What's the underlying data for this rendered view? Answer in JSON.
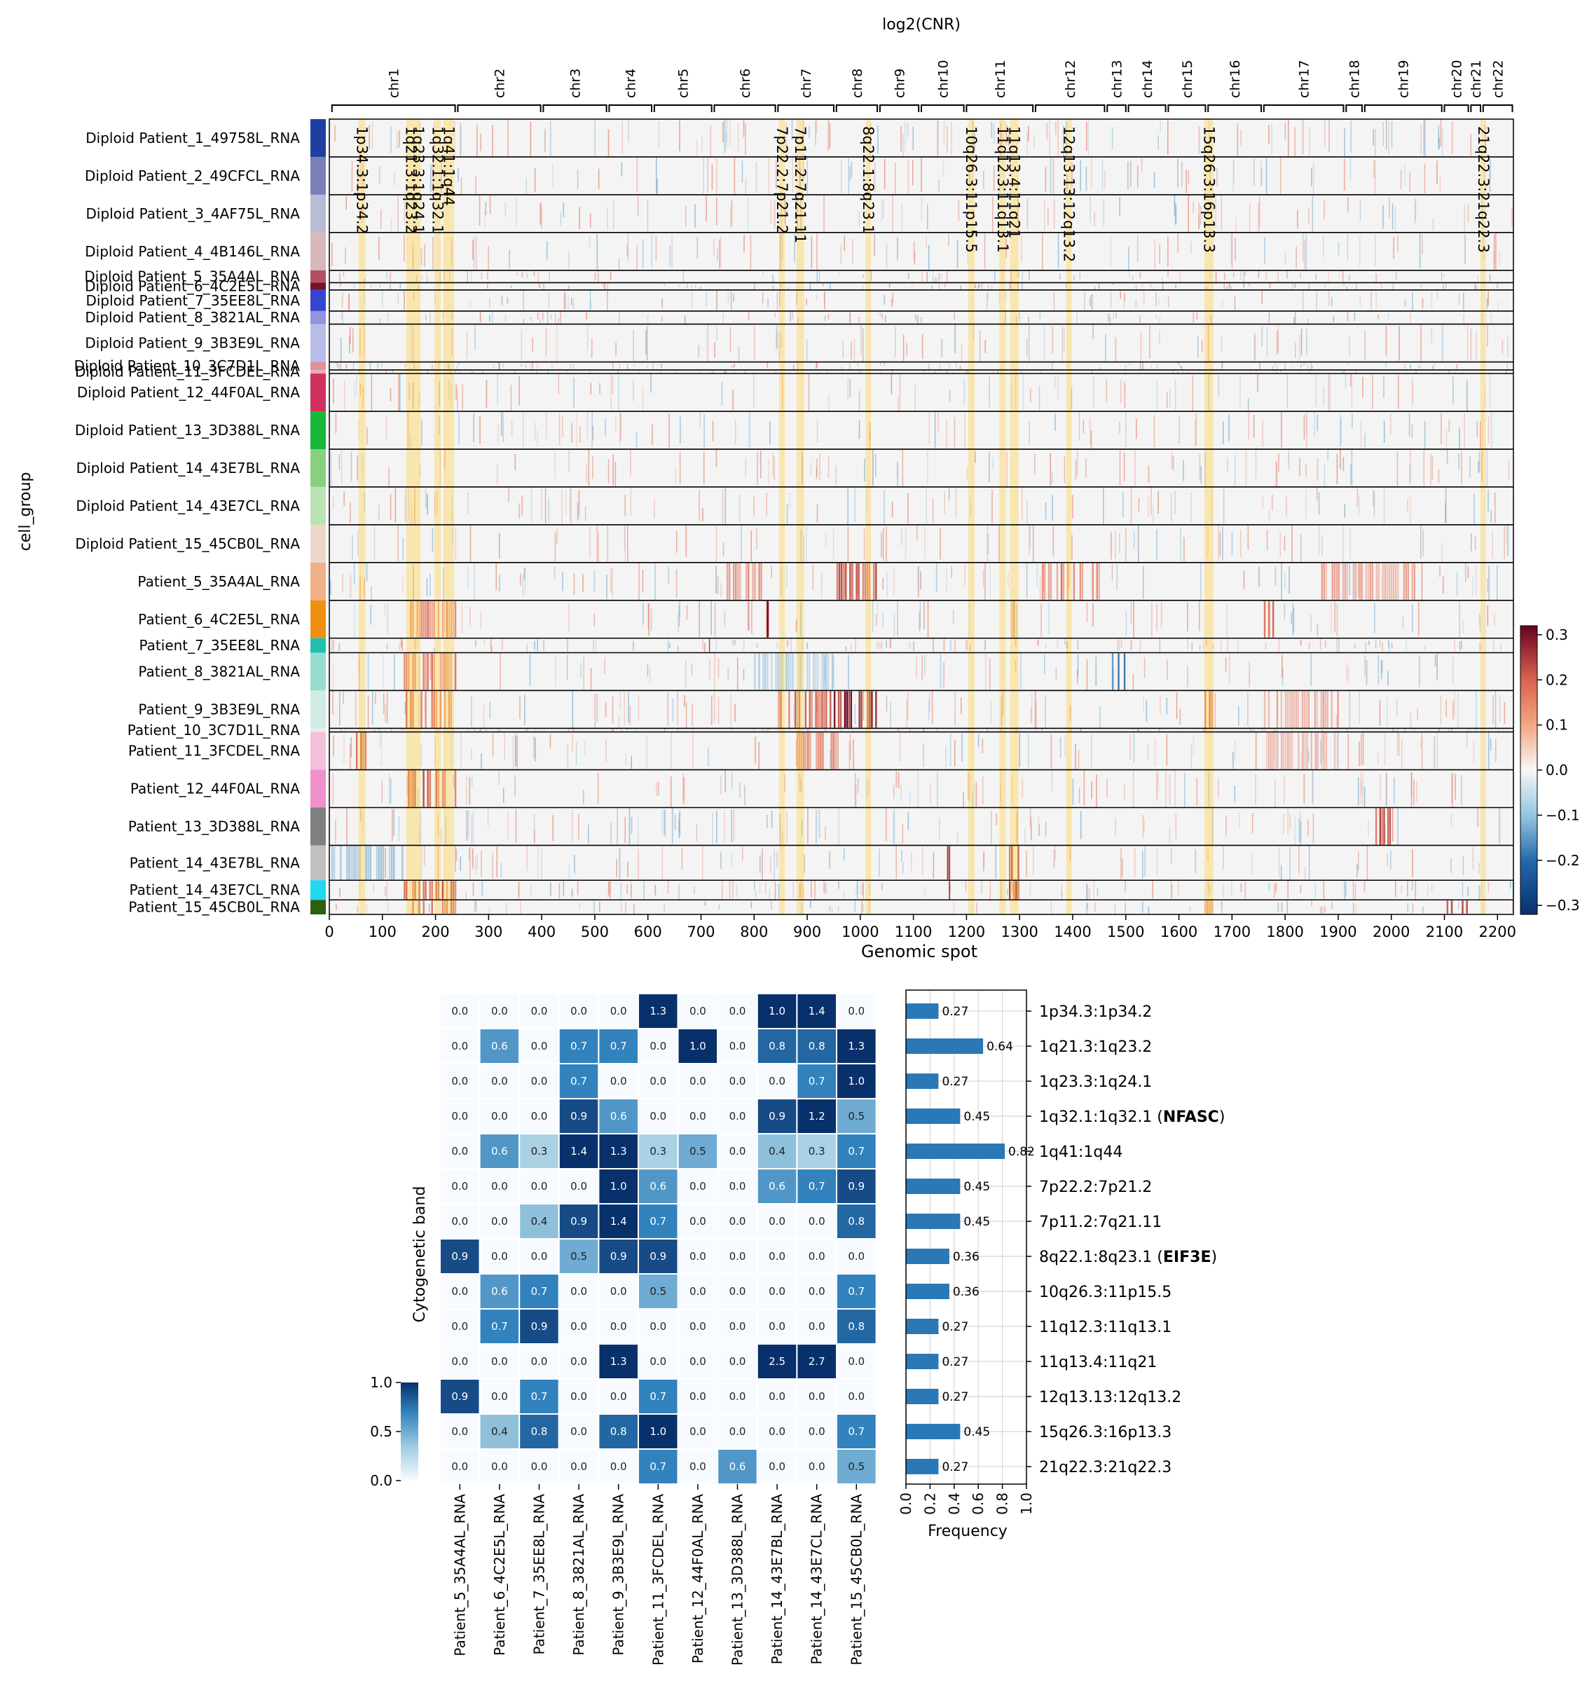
{
  "chart_data": [
    {
      "type": "heatmap",
      "title": "log2(CNR)",
      "xlabel": "Genomic spot",
      "ylabel": "cell_group",
      "x_range": [
        0,
        2230
      ],
      "x_ticks": [
        0,
        100,
        200,
        300,
        400,
        500,
        600,
        700,
        800,
        900,
        1000,
        1100,
        1200,
        1300,
        1400,
        1500,
        1600,
        1700,
        1800,
        1900,
        2000,
        2100,
        2200
      ],
      "chromosomes": [
        {
          "name": "chr1",
          "start": 5,
          "end": 237
        },
        {
          "name": "chr2",
          "start": 242,
          "end": 398
        },
        {
          "name": "chr3",
          "start": 403,
          "end": 522
        },
        {
          "name": "chr4",
          "start": 527,
          "end": 607
        },
        {
          "name": "chr5",
          "start": 612,
          "end": 720
        },
        {
          "name": "chr6",
          "start": 725,
          "end": 840
        },
        {
          "name": "chr7",
          "start": 845,
          "end": 950
        },
        {
          "name": "chr8",
          "start": 955,
          "end": 1032
        },
        {
          "name": "chr9",
          "start": 1037,
          "end": 1110
        },
        {
          "name": "chr10",
          "start": 1115,
          "end": 1195
        },
        {
          "name": "chr11",
          "start": 1200,
          "end": 1325
        },
        {
          "name": "chr12",
          "start": 1330,
          "end": 1460
        },
        {
          "name": "chr13",
          "start": 1465,
          "end": 1500
        },
        {
          "name": "chr14",
          "start": 1505,
          "end": 1575
        },
        {
          "name": "chr15",
          "start": 1580,
          "end": 1650
        },
        {
          "name": "chr16",
          "start": 1655,
          "end": 1755
        },
        {
          "name": "chr17",
          "start": 1760,
          "end": 1910
        },
        {
          "name": "chr18",
          "start": 1915,
          "end": 1945
        },
        {
          "name": "chr19",
          "start": 1950,
          "end": 2095
        },
        {
          "name": "chr20",
          "start": 2100,
          "end": 2145
        },
        {
          "name": "chr21",
          "start": 2150,
          "end": 2168
        },
        {
          "name": "chr22",
          "start": 2173,
          "end": 2228
        }
      ],
      "highlighted_regions": [
        {
          "label": "1p34.3:1p34.2",
          "start": 55,
          "end": 68
        },
        {
          "label": "1q21.3:1q23.2",
          "start": 145,
          "end": 163
        },
        {
          "label": "1q23.3:1q24.1",
          "start": 163,
          "end": 172
        },
        {
          "label": "1q32.1:1q32.1",
          "start": 198,
          "end": 210
        },
        {
          "label": "1q41:1q44",
          "start": 215,
          "end": 235
        },
        {
          "label": "7p22.2:7p21.2",
          "start": 847,
          "end": 858
        },
        {
          "label": "7p11.2:7q21.11",
          "start": 880,
          "end": 894
        },
        {
          "label": "8q22.1:8q23.1",
          "start": 1010,
          "end": 1020
        },
        {
          "label": "10q26.3:11p15.5",
          "start": 1203,
          "end": 1215
        },
        {
          "label": "11q12.3:11q13.1",
          "start": 1262,
          "end": 1274
        },
        {
          "label": "11q13.4:11q21",
          "start": 1282,
          "end": 1298
        },
        {
          "label": "12q13.13:12q13.2",
          "start": 1388,
          "end": 1398
        },
        {
          "label": "15q26.3:16p13.3",
          "start": 1648,
          "end": 1665
        },
        {
          "label": "21q22.3:21q22.3",
          "start": 2168,
          "end": 2178
        }
      ],
      "groups": [
        {
          "name": "Diploid Patient_1_49758L_RNA",
          "color": "#1f3fa0",
          "rows": 52
        },
        {
          "name": "Diploid Patient_2_49CFCL_RNA",
          "color": "#7b7fb8",
          "rows": 52
        },
        {
          "name": "Diploid Patient_3_4AF75L_RNA",
          "color": "#b9bcd4",
          "rows": 52
        },
        {
          "name": "Diploid Patient_4_4B146L_RNA",
          "color": "#d8b8bc",
          "rows": 52
        },
        {
          "name": "Diploid Patient_5_35A4AL_RNA",
          "color": "#b25060",
          "rows": 17
        },
        {
          "name": "Diploid Patient_6_4C2E5L_RNA",
          "color": "#7a0f2a",
          "rows": 10
        },
        {
          "name": "Diploid Patient_7_35EE8L_RNA",
          "color": "#3545d0",
          "rows": 29
        },
        {
          "name": "Diploid Patient_8_3821AL_RNA",
          "color": "#8f96e0",
          "rows": 18
        },
        {
          "name": "Diploid Patient_9_3B3E9L_RNA",
          "color": "#b8bde8",
          "rows": 52
        },
        {
          "name": "Diploid Patient_10_3C7D1L_RNA",
          "color": "#e0909c",
          "rows": 11
        },
        {
          "name": "Diploid Patient_11_3FCDEL_RNA",
          "color": "#e8b0b8",
          "rows": 5
        },
        {
          "name": "Diploid Patient_12_44F0AL_RNA",
          "color": "#d03060",
          "rows": 52
        },
        {
          "name": "Diploid Patient_13_3D388L_RNA",
          "color": "#17b83a",
          "rows": 52
        },
        {
          "name": "Diploid Patient_14_43E7BL_RNA",
          "color": "#88d080",
          "rows": 52
        },
        {
          "name": "Diploid Patient_14_43E7CL_RNA",
          "color": "#bce2b4",
          "rows": 52
        },
        {
          "name": "Diploid Patient_15_45CB0L_RNA",
          "color": "#edd8cc",
          "rows": 52
        },
        {
          "name": "Patient_5_35A4AL_RNA",
          "color": "#f0b088",
          "rows": 52
        },
        {
          "name": "Patient_6_4C2E5L_RNA",
          "color": "#f09010",
          "rows": 52
        },
        {
          "name": "Patient_7_35EE8L_RNA",
          "color": "#20c0b0",
          "rows": 20
        },
        {
          "name": "Patient_8_3821AL_RNA",
          "color": "#98dcd0",
          "rows": 52
        },
        {
          "name": "Patient_9_3B3E9L_RNA",
          "color": "#d0ece4",
          "rows": 52
        },
        {
          "name": "Patient_10_3C7D1L_RNA",
          "color": "#e6eef0",
          "rows": 5
        },
        {
          "name": "Patient_11_3FCDEL_RNA",
          "color": "#f4c0dc",
          "rows": 52
        },
        {
          "name": "Patient_12_44F0AL_RNA",
          "color": "#f090cc",
          "rows": 52
        },
        {
          "name": "Patient_13_3D388L_RNA",
          "color": "#808080",
          "rows": 52
        },
        {
          "name": "Patient_14_43E7BL_RNA",
          "color": "#c0c0c0",
          "rows": 48
        },
        {
          "name": "Patient_14_43E7CL_RNA",
          "color": "#20d8f0",
          "rows": 27
        },
        {
          "name": "Patient_15_45CB0L_RNA",
          "color": "#2a6010",
          "rows": 20
        }
      ],
      "gains": [
        {
          "group": "Patient_5_35A4AL_RNA",
          "start": 955,
          "end": 1032,
          "v": 0.2
        },
        {
          "group": "Patient_5_35A4AL_RNA",
          "start": 1330,
          "end": 1460,
          "v": 0.15
        },
        {
          "group": "Patient_5_35A4AL_RNA",
          "start": 740,
          "end": 820,
          "v": 0.12
        },
        {
          "group": "Patient_5_35A4AL_RNA",
          "start": 1860,
          "end": 2050,
          "v": 0.1
        },
        {
          "group": "Patient_6_4C2E5L_RNA",
          "start": 820,
          "end": 832,
          "v": 0.32
        },
        {
          "group": "Patient_6_4C2E5L_RNA",
          "start": 140,
          "end": 240,
          "v": 0.15
        },
        {
          "group": "Patient_6_4C2E5L_RNA",
          "start": 1760,
          "end": 1780,
          "v": 0.2
        },
        {
          "group": "Patient_6_4C2E5L_RNA",
          "start": 1280,
          "end": 1300,
          "v": 0.15
        },
        {
          "group": "Patient_7_35EE8L_RNA",
          "start": 715,
          "end": 722,
          "v": 0.3
        },
        {
          "group": "Patient_8_3821AL_RNA",
          "start": 140,
          "end": 240,
          "v": 0.15
        },
        {
          "group": "Patient_8_3821AL_RNA",
          "start": 1470,
          "end": 1500,
          "v": -0.22
        },
        {
          "group": "Patient_8_3821AL_RNA",
          "start": 800,
          "end": 950,
          "v": -0.08
        },
        {
          "group": "Patient_9_3B3E9L_RNA",
          "start": 950,
          "end": 1032,
          "v": 0.3
        },
        {
          "group": "Patient_9_3B3E9L_RNA",
          "start": 845,
          "end": 950,
          "v": 0.18
        },
        {
          "group": "Patient_9_3B3E9L_RNA",
          "start": 140,
          "end": 240,
          "v": 0.18
        },
        {
          "group": "Patient_9_3B3E9L_RNA",
          "start": 1648,
          "end": 1665,
          "v": 0.18
        },
        {
          "group": "Patient_9_3B3E9L_RNA",
          "start": 1760,
          "end": 1910,
          "v": 0.1
        },
        {
          "group": "Patient_11_3FCDEL_RNA",
          "start": 50,
          "end": 75,
          "v": 0.2
        },
        {
          "group": "Patient_11_3FCDEL_RNA",
          "start": 880,
          "end": 960,
          "v": 0.15
        },
        {
          "group": "Patient_11_3FCDEL_RNA",
          "start": 1760,
          "end": 1900,
          "v": 0.08
        },
        {
          "group": "Patient_12_44F0AL_RNA",
          "start": 140,
          "end": 240,
          "v": 0.2
        },
        {
          "group": "Patient_13_3D388L_RNA",
          "start": 1970,
          "end": 2000,
          "v": 0.22
        },
        {
          "group": "Patient_14_43E7BL_RNA",
          "start": 1160,
          "end": 1170,
          "v": 0.32
        },
        {
          "group": "Patient_14_43E7BL_RNA",
          "start": 1280,
          "end": 1300,
          "v": 0.25
        },
        {
          "group": "Patient_14_43E7BL_RNA",
          "start": 0,
          "end": 140,
          "v": -0.1
        },
        {
          "group": "Patient_14_43E7CL_RNA",
          "start": 1160,
          "end": 1170,
          "v": 0.32
        },
        {
          "group": "Patient_14_43E7CL_RNA",
          "start": 1280,
          "end": 1300,
          "v": 0.28
        },
        {
          "group": "Patient_14_43E7CL_RNA",
          "start": 140,
          "end": 240,
          "v": 0.2
        },
        {
          "group": "Patient_15_45CB0L_RNA",
          "start": 500,
          "end": 522,
          "v": 0.32
        },
        {
          "group": "Patient_15_45CB0L_RNA",
          "start": 2100,
          "end": 2145,
          "v": 0.2
        },
        {
          "group": "Patient_15_45CB0L_RNA",
          "start": 140,
          "end": 240,
          "v": 0.18
        },
        {
          "group": "Patient_15_45CB0L_RNA",
          "start": 1648,
          "end": 1665,
          "v": 0.15
        }
      ],
      "colorbar": {
        "min": -0.32,
        "max": 0.32,
        "ticks": [
          0.3,
          0.2,
          0.1,
          0.0,
          -0.1,
          -0.2,
          -0.3
        ],
        "tick_labels": [
          "0.3",
          "0.2",
          "0.1",
          "0.0",
          "−0.1",
          "−0.2",
          "−0.3"
        ],
        "colormap": "RdBu_r"
      }
    },
    {
      "type": "heatmap",
      "ylabel": "Cytogenetic band",
      "columns": [
        "Patient_5_35A4AL_RNA",
        "Patient_6_4C2E5L_RNA",
        "Patient_7_35EE8L_RNA",
        "Patient_8_3821AL_RNA",
        "Patient_9_3B3E9L_RNA",
        "Patient_11_3FCDEL_RNA",
        "Patient_12_44F0AL_RNA",
        "Patient_13_3D388L_RNA",
        "Patient_14_43E7BL_RNA",
        "Patient_14_43E7CL_RNA",
        "Patient_15_45CB0L_RNA"
      ],
      "rows": [
        {
          "band": "1p34.3:1p34.2",
          "gene": ""
        },
        {
          "band": "1q21.3:1q23.2",
          "gene": ""
        },
        {
          "band": "1q23.3:1q24.1",
          "gene": ""
        },
        {
          "band": "1q32.1:1q32.1",
          "gene": "NFASC"
        },
        {
          "band": "1q41:1q44",
          "gene": ""
        },
        {
          "band": "7p22.2:7p21.2",
          "gene": ""
        },
        {
          "band": "7p11.2:7q21.11",
          "gene": ""
        },
        {
          "band": "8q22.1:8q23.1",
          "gene": "EIF3E"
        },
        {
          "band": "10q26.3:11p15.5",
          "gene": ""
        },
        {
          "band": "11q12.3:11q13.1",
          "gene": ""
        },
        {
          "band": "11q13.4:11q21",
          "gene": ""
        },
        {
          "band": "12q13.13:12q13.2",
          "gene": ""
        },
        {
          "band": "15q26.3:16p13.3",
          "gene": ""
        },
        {
          "band": "21q22.3:21q22.3",
          "gene": ""
        }
      ],
      "values": [
        [
          0.0,
          0.0,
          0.0,
          0.0,
          0.0,
          1.3,
          0.0,
          0.0,
          1.0,
          1.4,
          0.0
        ],
        [
          0.0,
          0.6,
          0.0,
          0.7,
          0.7,
          0.0,
          1.0,
          0.0,
          0.8,
          0.8,
          1.3
        ],
        [
          0.0,
          0.0,
          0.0,
          0.7,
          0.0,
          0.0,
          0.0,
          0.0,
          0.0,
          0.7,
          1.0
        ],
        [
          0.0,
          0.0,
          0.0,
          0.9,
          0.6,
          0.0,
          0.0,
          0.0,
          0.9,
          1.2,
          0.5
        ],
        [
          0.0,
          0.6,
          0.3,
          1.4,
          1.3,
          0.3,
          0.5,
          0.0,
          0.4,
          0.3,
          0.7
        ],
        [
          0.0,
          0.0,
          0.0,
          0.0,
          1.0,
          0.6,
          0.0,
          0.0,
          0.6,
          0.7,
          0.9
        ],
        [
          0.0,
          0.0,
          0.4,
          0.9,
          1.4,
          0.7,
          0.0,
          0.0,
          0.0,
          0.0,
          0.8
        ],
        [
          0.9,
          0.0,
          0.0,
          0.5,
          0.9,
          0.9,
          0.0,
          0.0,
          0.0,
          0.0,
          0.0
        ],
        [
          0.0,
          0.6,
          0.7,
          0.0,
          0.0,
          0.5,
          0.0,
          0.0,
          0.0,
          0.0,
          0.7
        ],
        [
          0.0,
          0.7,
          0.9,
          0.0,
          0.0,
          0.0,
          0.0,
          0.0,
          0.0,
          0.0,
          0.8
        ],
        [
          0.0,
          0.0,
          0.0,
          0.0,
          1.3,
          0.0,
          0.0,
          0.0,
          2.5,
          2.7,
          0.0
        ],
        [
          0.9,
          0.0,
          0.7,
          0.0,
          0.0,
          0.7,
          0.0,
          0.0,
          0.0,
          0.0,
          0.0
        ],
        [
          0.0,
          0.4,
          0.8,
          0.0,
          0.8,
          1.0,
          0.0,
          0.0,
          0.0,
          0.0,
          0.7
        ],
        [
          0.0,
          0.0,
          0.0,
          0.0,
          0.0,
          0.7,
          0.0,
          0.6,
          0.0,
          0.0,
          0.5
        ]
      ],
      "colorbar": {
        "min": 0.0,
        "max": 1.0,
        "ticks": [
          1.0,
          0.5,
          0.0
        ],
        "tick_labels": [
          "1.0",
          "0.5",
          "0.0"
        ],
        "colormap": "Blues"
      }
    },
    {
      "type": "bar",
      "orientation": "horizontal",
      "xlabel": "Frequency",
      "xlim": [
        0,
        1.0
      ],
      "x_ticks": [
        0.0,
        0.2,
        0.4,
        0.6,
        0.8,
        1.0
      ],
      "x_tick_labels": [
        "0.0",
        "0.2",
        "0.4",
        "0.6",
        "0.8",
        "1.0"
      ],
      "values": [
        0.27,
        0.64,
        0.27,
        0.45,
        0.82,
        0.45,
        0.45,
        0.36,
        0.36,
        0.27,
        0.27,
        0.27,
        0.45,
        0.27
      ],
      "value_labels": [
        "0.27",
        "0.64",
        "0.27",
        "0.45",
        "0.82",
        "0.45",
        "0.45",
        "0.36",
        "0.36",
        "0.27",
        "0.27",
        "0.27",
        "0.45",
        "0.27"
      ],
      "bar_color": "#2a78b5"
    }
  ]
}
